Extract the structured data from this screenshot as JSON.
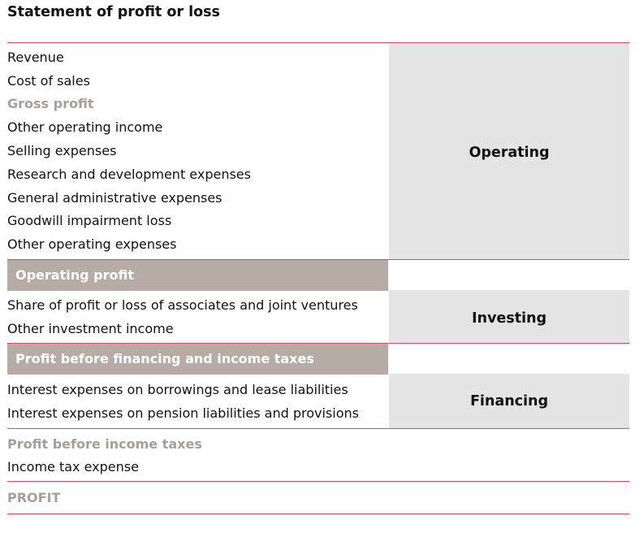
{
  "title": "Statement of profit or loss",
  "categories": {
    "operating": "Operating",
    "investing": "Investing",
    "financing": "Financing"
  },
  "operating_items": [
    "Revenue",
    "Cost of sales",
    "Gross profit",
    "Other operating income",
    "Selling expenses",
    "Research and development expenses",
    "General administrative expenses",
    "Goodwill impairment loss",
    "Other operating expenses"
  ],
  "operating_profit": "Operating profit",
  "investing_items": [
    "Share of profit or loss of associates and joint ventures",
    "Other investment income"
  ],
  "profit_before_financing": "Profit before financing and income taxes",
  "financing_items": [
    "Interest expenses on borrowings and lease liabilities",
    "Interest expenses on pension liabilities and provisions"
  ],
  "profit_before_taxes": "Profit before income taxes",
  "income_tax": "Income tax expense",
  "profit": "PROFIT",
  "colors": {
    "accent_line": "#d84c68",
    "subtotal_band": "#b7aca5",
    "category_shade": "#e4e4e4",
    "subtotal_text": "#a59f9b"
  }
}
